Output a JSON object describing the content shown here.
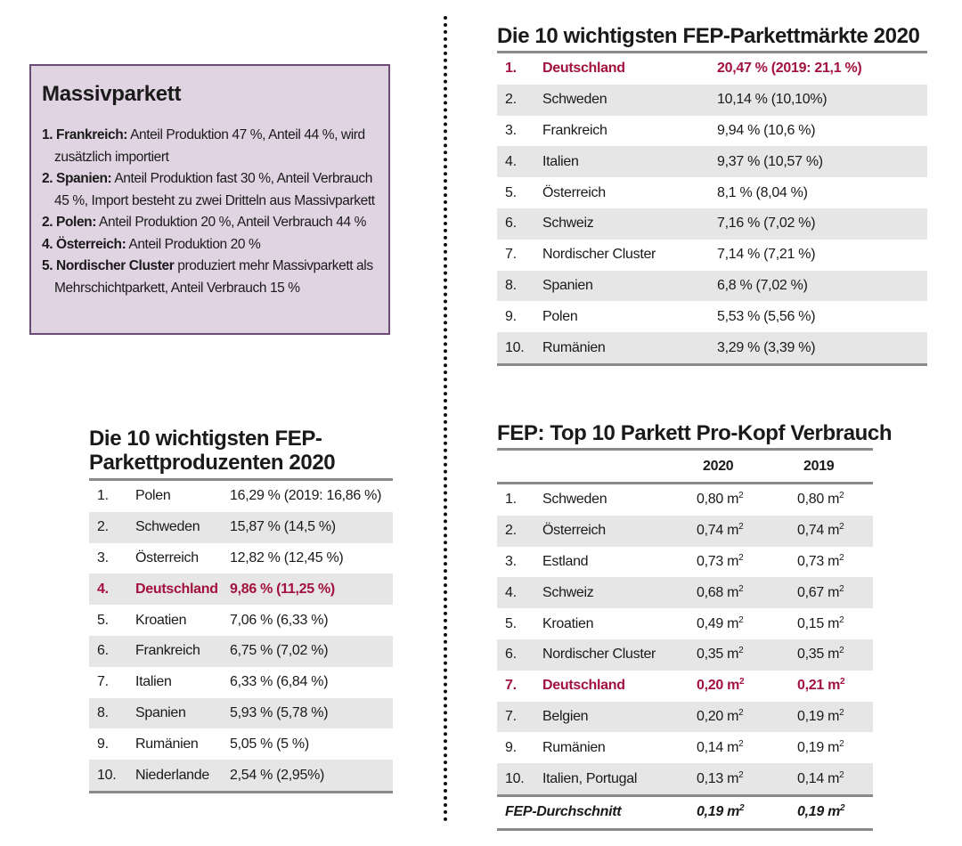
{
  "colors": {
    "highlight": "#a3123f",
    "row_alt": "#e6e6e6",
    "box_bg": "#e0d4e2",
    "box_border": "#6b4a73"
  },
  "massiv": {
    "title": "Massivparkett",
    "items": [
      {
        "bold": "1. Frankreich:",
        "text": " Anteil Produktion 47 %, Anteil 44 %, wird zusätzlich importiert"
      },
      {
        "bold": "2. Spanien:",
        "text": " Anteil Produktion fast 30 %, Anteil Verbrauch 45 %, Import besteht zu zwei Dritteln aus Massivparkett"
      },
      {
        "bold": "2. Polen:",
        "text": " Anteil Produktion 20 %, Anteil Verbrauch 44 %"
      },
      {
        "bold": "4. Österreich:",
        "text": " Anteil Produktion 20 %"
      },
      {
        "bold": "5. Nordischer Cluster",
        "text": " produziert mehr Massivparkett als Mehrschichtparkett, Anteil Verbrauch 15 %"
      }
    ]
  },
  "markets": {
    "title": "Die 10 wichtigsten FEP-Parkettmärkte 2020",
    "rows": [
      {
        "rank": "1.",
        "name": "Deutschland",
        "value": "20,47 % (2019: 21,1 %)",
        "highlight": true
      },
      {
        "rank": "2.",
        "name": "Schweden",
        "value": "10,14 % (10,10%)"
      },
      {
        "rank": "3.",
        "name": "Frankreich",
        "value": "9,94 % (10,6 %)"
      },
      {
        "rank": "4.",
        "name": "Italien",
        "value": "9,37 % (10,57 %)"
      },
      {
        "rank": "5.",
        "name": "Österreich",
        "value": "8,1 % (8,04 %)"
      },
      {
        "rank": "6.",
        "name": "Schweiz",
        "value": "7,16 % (7,02 %)"
      },
      {
        "rank": "7.",
        "name": "Nordischer Cluster",
        "value": "7,14 % (7,21 %)"
      },
      {
        "rank": "8.",
        "name": "Spanien",
        "value": "6,8 % (7,02 %)"
      },
      {
        "rank": "9.",
        "name": "Polen",
        "value": "5,53 % (5,56 %)"
      },
      {
        "rank": "10.",
        "name": "Rumänien",
        "value": "3,29 % (3,39 %)"
      }
    ]
  },
  "producers": {
    "title_line1": "Die 10 wichtigsten FEP-",
    "title_line2": "Parkettproduzenten 2020",
    "rows": [
      {
        "rank": "1.",
        "name": "Polen",
        "value": "16,29 % (2019: 16,86 %)"
      },
      {
        "rank": "2.",
        "name": "Schweden",
        "value": "15,87 % (14,5 %)"
      },
      {
        "rank": "3.",
        "name": "Österreich",
        "value": "12,82 % (12,45 %)"
      },
      {
        "rank": "4.",
        "name": "Deutschland",
        "value": "9,86 % (11,25 %)",
        "highlight": true
      },
      {
        "rank": "5.",
        "name": "Kroatien",
        "value": "7,06 % (6,33 %)"
      },
      {
        "rank": "6.",
        "name": "Frankreich",
        "value": "6,75 % (7,02 %)"
      },
      {
        "rank": "7.",
        "name": "Italien",
        "value": "6,33 % (6,84 %)"
      },
      {
        "rank": "8.",
        "name": "Spanien",
        "value": "5,93 % (5,78 %)"
      },
      {
        "rank": "9.",
        "name": "Rumänien",
        "value": "5,05 % (5 %)"
      },
      {
        "rank": "10.",
        "name": "Niederlande",
        "value": "2,54 % (2,95%)"
      }
    ]
  },
  "perhead": {
    "title": "FEP: Top 10 Parkett Pro-Kopf Verbrauch",
    "col_2020": "2020",
    "col_2019": "2019",
    "unit": "m",
    "unit_exp": "2",
    "rows": [
      {
        "rank": "1.",
        "name": "Schweden",
        "v2020": "0,80",
        "v2019": "0,80"
      },
      {
        "rank": "2.",
        "name": "Österreich",
        "v2020": "0,74",
        "v2019": "0,74"
      },
      {
        "rank": "3.",
        "name": "Estland",
        "v2020": "0,73",
        "v2019": "0,73"
      },
      {
        "rank": "4.",
        "name": "Schweiz",
        "v2020": "0,68",
        "v2019": "0,67"
      },
      {
        "rank": "5.",
        "name": "Kroatien",
        "v2020": "0,49",
        "v2019": "0,15"
      },
      {
        "rank": "6.",
        "name": "Nordischer Cluster",
        "v2020": "0,35",
        "v2019": "0,35"
      },
      {
        "rank": "7.",
        "name": "Deutschland",
        "v2020": "0,20",
        "v2019": "0,21",
        "highlight": true
      },
      {
        "rank": "7.",
        "name": "Belgien",
        "v2020": "0,20",
        "v2019": "0,19"
      },
      {
        "rank": "9.",
        "name": "Rumänien",
        "v2020": "0,14",
        "v2019": "0,19"
      },
      {
        "rank": "10.",
        "name": "Italien, Portugal",
        "v2020": "0,13",
        "v2019": "0,14"
      }
    ],
    "footer": {
      "label": "FEP-Durchschnitt",
      "v2020": "0,19",
      "v2019": "0,19"
    }
  }
}
